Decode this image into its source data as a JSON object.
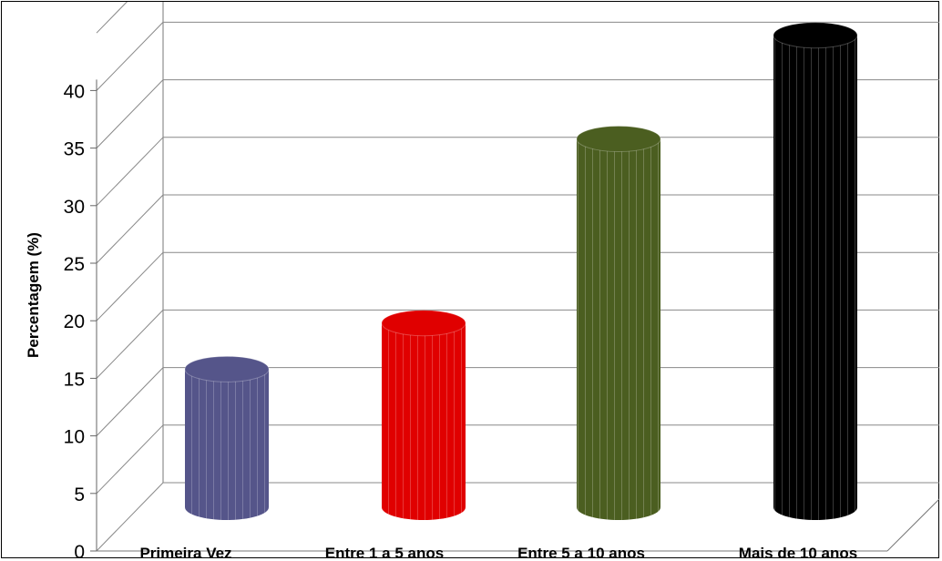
{
  "chart_data": {
    "type": "bar",
    "style": "3d-cylinder",
    "categories": [
      "Primeira Vez",
      "Entre 1 a 5 anos",
      "Entre 5 a 10 anos",
      "Mais de 10 anos"
    ],
    "values": [
      12,
      16,
      32,
      41
    ],
    "colors": [
      "#55558a",
      "#e00000",
      "#4b5e20",
      "#000000"
    ],
    "ylabel": "Percentagem (%)",
    "xlabel": "",
    "title": "",
    "ylim": [
      0,
      40
    ],
    "yticks": [
      0,
      5,
      10,
      15,
      20,
      25,
      30,
      35,
      40
    ],
    "grid": true,
    "legend": "none"
  }
}
